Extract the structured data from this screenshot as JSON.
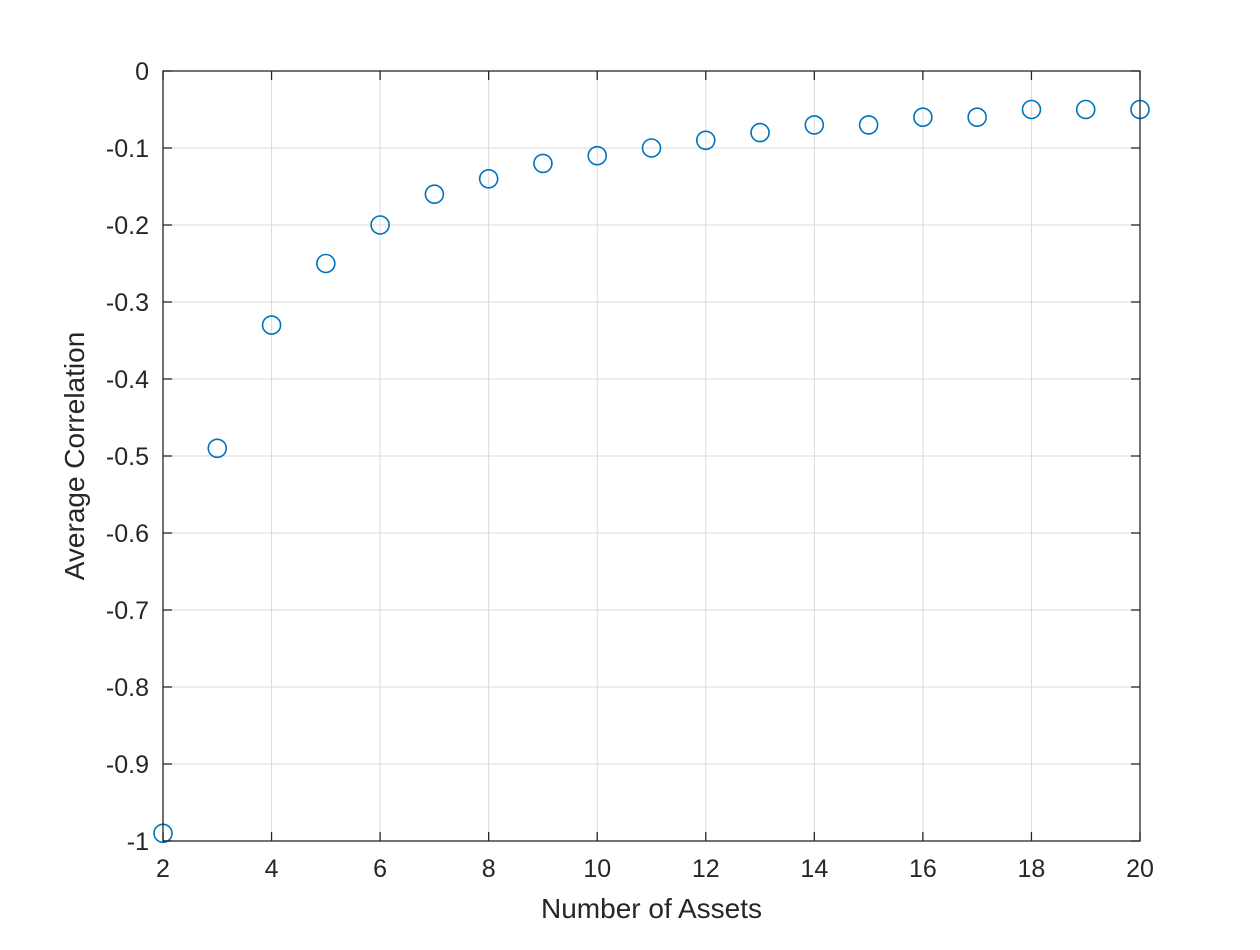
{
  "chart_data": {
    "type": "scatter",
    "title": "",
    "xlabel": "Number of Assets",
    "ylabel": "Average Correlation",
    "xlim": [
      2,
      20
    ],
    "ylim": [
      -1,
      0
    ],
    "xticks": [
      2,
      4,
      6,
      8,
      10,
      12,
      14,
      16,
      18,
      20
    ],
    "yticks": [
      0,
      -0.1,
      -0.2,
      -0.3,
      -0.4,
      -0.5,
      -0.6,
      -0.7,
      -0.8,
      -0.9,
      -1
    ],
    "grid": true,
    "legend": "none",
    "marker": "open-circle",
    "color": "#0072BD",
    "series": [
      {
        "x": [
          2,
          3,
          4,
          5,
          6,
          7,
          8,
          9,
          10,
          11,
          12,
          13,
          14,
          15,
          16,
          17,
          18,
          19,
          20
        ],
        "values": [
          -0.99,
          -0.49,
          -0.33,
          -0.25,
          -0.2,
          -0.16,
          -0.14,
          -0.12,
          -0.11,
          -0.1,
          -0.09,
          -0.08,
          -0.07,
          -0.07,
          -0.06,
          -0.06,
          -0.05,
          -0.05,
          -0.05
        ]
      }
    ]
  }
}
